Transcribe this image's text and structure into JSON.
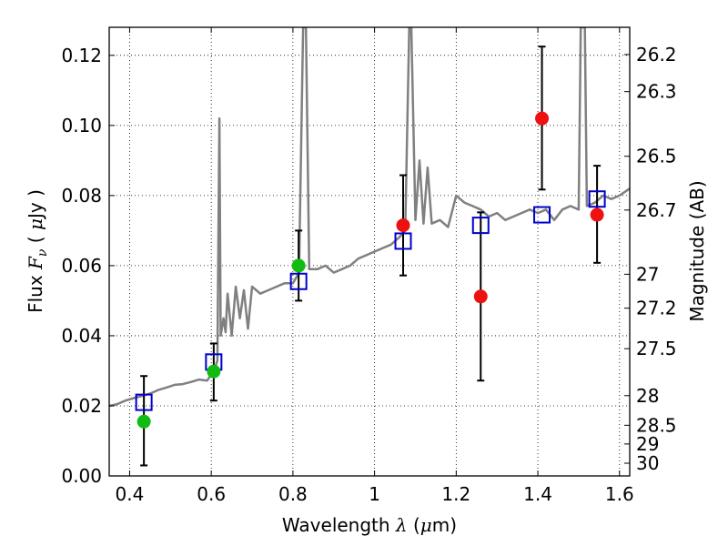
{
  "chart_data": {
    "type": "scatter",
    "xlabel": {
      "prefix": "Wavelength  ",
      "symbol": "λ",
      "suffix": " (",
      "unit_symbol": "μ",
      "unit_rest": "m)"
    },
    "ylabel": {
      "prefix": "Flux  ",
      "symbol": "F",
      "subscript": "ν",
      "mid": "  ( ",
      "unit_symbol": "μ",
      "unit_rest": "Jy )"
    },
    "y2label": "Magnitude (AB)",
    "xlim": [
      0.35,
      1.625
    ],
    "ylim": [
      0.0,
      0.128
    ],
    "grid": true,
    "x_ticks": [
      {
        "value": 0.4,
        "label": "0.4"
      },
      {
        "value": 0.6,
        "label": "0.6"
      },
      {
        "value": 0.8,
        "label": "0.8"
      },
      {
        "value": 1.0,
        "label": "1"
      },
      {
        "value": 1.2,
        "label": "1.2"
      },
      {
        "value": 1.4,
        "label": "1.4"
      },
      {
        "value": 1.6,
        "label": "1.6"
      }
    ],
    "y_ticks": [
      {
        "value": 0.0,
        "label": "0.00"
      },
      {
        "value": 0.02,
        "label": "0.02"
      },
      {
        "value": 0.04,
        "label": "0.04"
      },
      {
        "value": 0.06,
        "label": "0.06"
      },
      {
        "value": 0.08,
        "label": "0.08"
      },
      {
        "value": 0.1,
        "label": "0.10"
      },
      {
        "value": 0.12,
        "label": "0.12"
      }
    ],
    "mag_ticks": [
      "26.2",
      "26.3",
      "26.5",
      "26.7",
      "27",
      "27.2",
      "27.5",
      "28",
      "28.5",
      "29",
      "30"
    ],
    "colors": {
      "model": "#808080",
      "green": "#11bb11",
      "red": "#ee1111",
      "box": "#0000cc",
      "error": "#000000"
    },
    "model_spectrum": [
      [
        0.35,
        0.02
      ],
      [
        0.37,
        0.0205
      ],
      [
        0.39,
        0.0215
      ],
      [
        0.41,
        0.0222
      ],
      [
        0.43,
        0.0228
      ],
      [
        0.45,
        0.0235
      ],
      [
        0.47,
        0.0245
      ],
      [
        0.49,
        0.0252
      ],
      [
        0.51,
        0.026
      ],
      [
        0.53,
        0.0262
      ],
      [
        0.55,
        0.0268
      ],
      [
        0.57,
        0.0275
      ],
      [
        0.59,
        0.0272
      ],
      [
        0.6,
        0.029
      ],
      [
        0.61,
        0.031
      ],
      [
        0.615,
        0.033
      ],
      [
        0.62,
        0.102
      ],
      [
        0.623,
        0.04
      ],
      [
        0.63,
        0.045
      ],
      [
        0.635,
        0.041
      ],
      [
        0.64,
        0.052
      ],
      [
        0.65,
        0.04
      ],
      [
        0.66,
        0.054
      ],
      [
        0.67,
        0.045
      ],
      [
        0.68,
        0.053
      ],
      [
        0.69,
        0.042
      ],
      [
        0.7,
        0.054
      ],
      [
        0.72,
        0.052
      ],
      [
        0.74,
        0.053
      ],
      [
        0.76,
        0.054
      ],
      [
        0.78,
        0.055
      ],
      [
        0.8,
        0.055
      ],
      [
        0.815,
        0.058
      ],
      [
        0.825,
        0.128
      ],
      [
        0.832,
        0.128
      ],
      [
        0.84,
        0.059
      ],
      [
        0.86,
        0.059
      ],
      [
        0.88,
        0.06
      ],
      [
        0.9,
        0.058
      ],
      [
        0.92,
        0.059
      ],
      [
        0.94,
        0.06
      ],
      [
        0.96,
        0.062
      ],
      [
        0.98,
        0.063
      ],
      [
        1.0,
        0.064
      ],
      [
        1.02,
        0.065
      ],
      [
        1.04,
        0.066
      ],
      [
        1.06,
        0.068
      ],
      [
        1.075,
        0.07
      ],
      [
        1.085,
        0.128
      ],
      [
        1.09,
        0.128
      ],
      [
        1.1,
        0.073
      ],
      [
        1.11,
        0.09
      ],
      [
        1.12,
        0.072
      ],
      [
        1.13,
        0.088
      ],
      [
        1.14,
        0.072
      ],
      [
        1.16,
        0.073
      ],
      [
        1.18,
        0.071
      ],
      [
        1.2,
        0.08
      ],
      [
        1.22,
        0.078
      ],
      [
        1.24,
        0.077
      ],
      [
        1.26,
        0.076
      ],
      [
        1.28,
        0.074
      ],
      [
        1.3,
        0.075
      ],
      [
        1.32,
        0.073
      ],
      [
        1.34,
        0.074
      ],
      [
        1.36,
        0.075
      ],
      [
        1.38,
        0.076
      ],
      [
        1.4,
        0.075
      ],
      [
        1.42,
        0.076
      ],
      [
        1.44,
        0.073
      ],
      [
        1.46,
        0.076
      ],
      [
        1.48,
        0.077
      ],
      [
        1.5,
        0.076
      ],
      [
        1.505,
        0.128
      ],
      [
        1.515,
        0.128
      ],
      [
        1.52,
        0.077
      ],
      [
        1.54,
        0.078
      ],
      [
        1.56,
        0.08
      ],
      [
        1.58,
        0.079
      ],
      [
        1.6,
        0.08
      ],
      [
        1.625,
        0.082
      ]
    ],
    "model_bandpass": [
      {
        "x": 0.435,
        "y": 0.021
      },
      {
        "x": 0.606,
        "y": 0.0325
      },
      {
        "x": 0.814,
        "y": 0.0555
      },
      {
        "x": 1.07,
        "y": 0.067
      },
      {
        "x": 1.26,
        "y": 0.0715
      },
      {
        "x": 1.41,
        "y": 0.0745
      },
      {
        "x": 1.545,
        "y": 0.079
      }
    ],
    "observed": [
      {
        "x": 0.435,
        "y": 0.0155,
        "err_low": 0.003,
        "err_high": 0.0285,
        "color": "green"
      },
      {
        "x": 0.606,
        "y": 0.0298,
        "err_low": 0.0215,
        "err_high": 0.0378,
        "color": "green"
      },
      {
        "x": 0.814,
        "y": 0.06,
        "err_low": 0.05,
        "err_high": 0.07,
        "color": "green"
      },
      {
        "x": 1.07,
        "y": 0.0715,
        "err_low": 0.0572,
        "err_high": 0.0858,
        "color": "red"
      },
      {
        "x": 1.26,
        "y": 0.0512,
        "err_low": 0.0272,
        "err_high": 0.0752,
        "color": "red"
      },
      {
        "x": 1.41,
        "y": 0.102,
        "err_low": 0.0817,
        "err_high": 0.1225,
        "color": "red"
      },
      {
        "x": 1.545,
        "y": 0.0745,
        "err_low": 0.0608,
        "err_high": 0.0885,
        "color": "red"
      }
    ]
  }
}
